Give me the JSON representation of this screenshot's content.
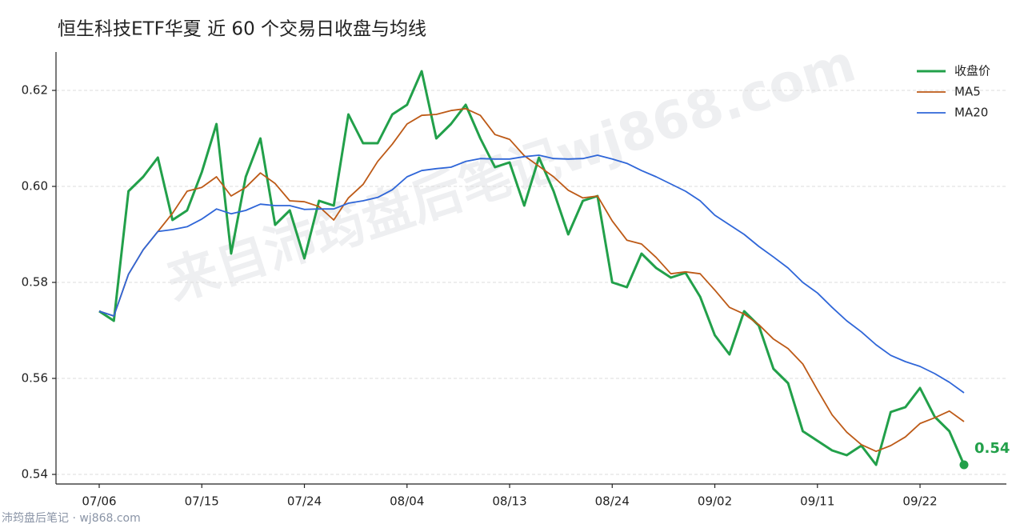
{
  "chart_data": {
    "type": "line",
    "title": "恒生科技ETF华夏 近 60 个交易日收盘与均线",
    "watermark": "来自沛筠盘后笔记wj868.com",
    "footer": "沛筠盘后笔记 · wj868.com",
    "categories": [
      "07/06",
      null,
      null,
      null,
      null,
      null,
      null,
      "07/15",
      null,
      null,
      null,
      null,
      null,
      null,
      "07/24",
      null,
      null,
      null,
      null,
      null,
      null,
      "08/04",
      null,
      null,
      null,
      null,
      null,
      null,
      "08/13",
      null,
      null,
      null,
      null,
      null,
      null,
      "08/24",
      null,
      null,
      null,
      null,
      null,
      null,
      "09/02",
      null,
      null,
      null,
      null,
      null,
      null,
      "09/11",
      null,
      null,
      null,
      null,
      null,
      null,
      "09/22",
      null,
      null,
      null
    ],
    "series": [
      {
        "name": "收盘价",
        "color": "#22a04a",
        "values": [
          0.574,
          0.572,
          0.599,
          0.602,
          0.606,
          0.593,
          0.595,
          0.603,
          0.613,
          0.586,
          0.602,
          0.61,
          0.592,
          0.595,
          0.585,
          0.597,
          0.596,
          0.615,
          0.609,
          0.609,
          0.615,
          0.617,
          0.624,
          0.61,
          0.613,
          0.617,
          0.61,
          0.604,
          0.605,
          0.596,
          0.606,
          0.599,
          0.59,
          0.597,
          0.598,
          0.58,
          0.579,
          0.586,
          0.583,
          0.581,
          0.582,
          0.577,
          0.569,
          0.565,
          0.574,
          0.571,
          0.562,
          0.559,
          0.549,
          0.547,
          0.545,
          0.544,
          0.546,
          0.542,
          0.553,
          0.554,
          0.558,
          0.552,
          0.549,
          0.542
        ],
        "value_labels": [
          null,
          null,
          null,
          null,
          null,
          null,
          null,
          null,
          null,
          null,
          null,
          null,
          null,
          null,
          null,
          null,
          null,
          null,
          null,
          null,
          null,
          null,
          null,
          null,
          null,
          null,
          null,
          null,
          null,
          null,
          null,
          null,
          null,
          null,
          null,
          null,
          null,
          null,
          null,
          null,
          null,
          null,
          null,
          null,
          null,
          null,
          null,
          null,
          null,
          null,
          null,
          null,
          null,
          null,
          null,
          null,
          null,
          null,
          null,
          "0.54"
        ]
      },
      {
        "name": "MA5",
        "color": "#bd5a17",
        "values": [
          0.574,
          0.573,
          0.5817,
          0.5868,
          0.5906,
          0.5944,
          0.599,
          0.5998,
          0.602,
          0.598,
          0.5998,
          0.6028,
          0.6006,
          0.597,
          0.5968,
          0.5958,
          0.593,
          0.5976,
          0.6004,
          0.6052,
          0.6088,
          0.613,
          0.6148,
          0.615,
          0.6158,
          0.6162,
          0.6148,
          0.6108,
          0.6098,
          0.6064,
          0.6042,
          0.602,
          0.5992,
          0.5976,
          0.598,
          0.5928,
          0.5888,
          0.588,
          0.5852,
          0.5818,
          0.5822,
          0.5818,
          0.5784,
          0.5748,
          0.5734,
          0.5712,
          0.5682,
          0.5662,
          0.563,
          0.5576,
          0.5524,
          0.5488,
          0.5462,
          0.5448,
          0.546,
          0.5478,
          0.5506,
          0.5518,
          0.5532,
          0.551
        ]
      },
      {
        "name": "MA20",
        "color": "#2f66d8",
        "values": [
          0.574,
          0.573,
          0.5817,
          0.5868,
          0.5906,
          0.591,
          0.5916,
          0.5932,
          0.5953,
          0.5943,
          0.595,
          0.5963,
          0.596,
          0.596,
          0.5952,
          0.5953,
          0.5953,
          0.5965,
          0.597,
          0.5977,
          0.5993,
          0.602,
          0.6033,
          0.6037,
          0.604,
          0.6052,
          0.6058,
          0.6057,
          0.6057,
          0.6062,
          0.6065,
          0.6058,
          0.6057,
          0.6058,
          0.6065,
          0.6057,
          0.6048,
          0.6033,
          0.602,
          0.6005,
          0.599,
          0.597,
          0.594,
          0.592,
          0.59,
          0.5875,
          0.5853,
          0.583,
          0.58,
          0.5778,
          0.5748,
          0.572,
          0.5697,
          0.567,
          0.5648,
          0.5635,
          0.5625,
          0.561,
          0.5592,
          0.557
        ]
      }
    ],
    "ylim": [
      0.538,
      0.628
    ],
    "yticks": [
      0.54,
      0.56,
      0.58,
      {
        "value": 0.6,
        "label": "0.60"
      },
      0.62
    ],
    "grid": true,
    "legend": "upper right"
  }
}
